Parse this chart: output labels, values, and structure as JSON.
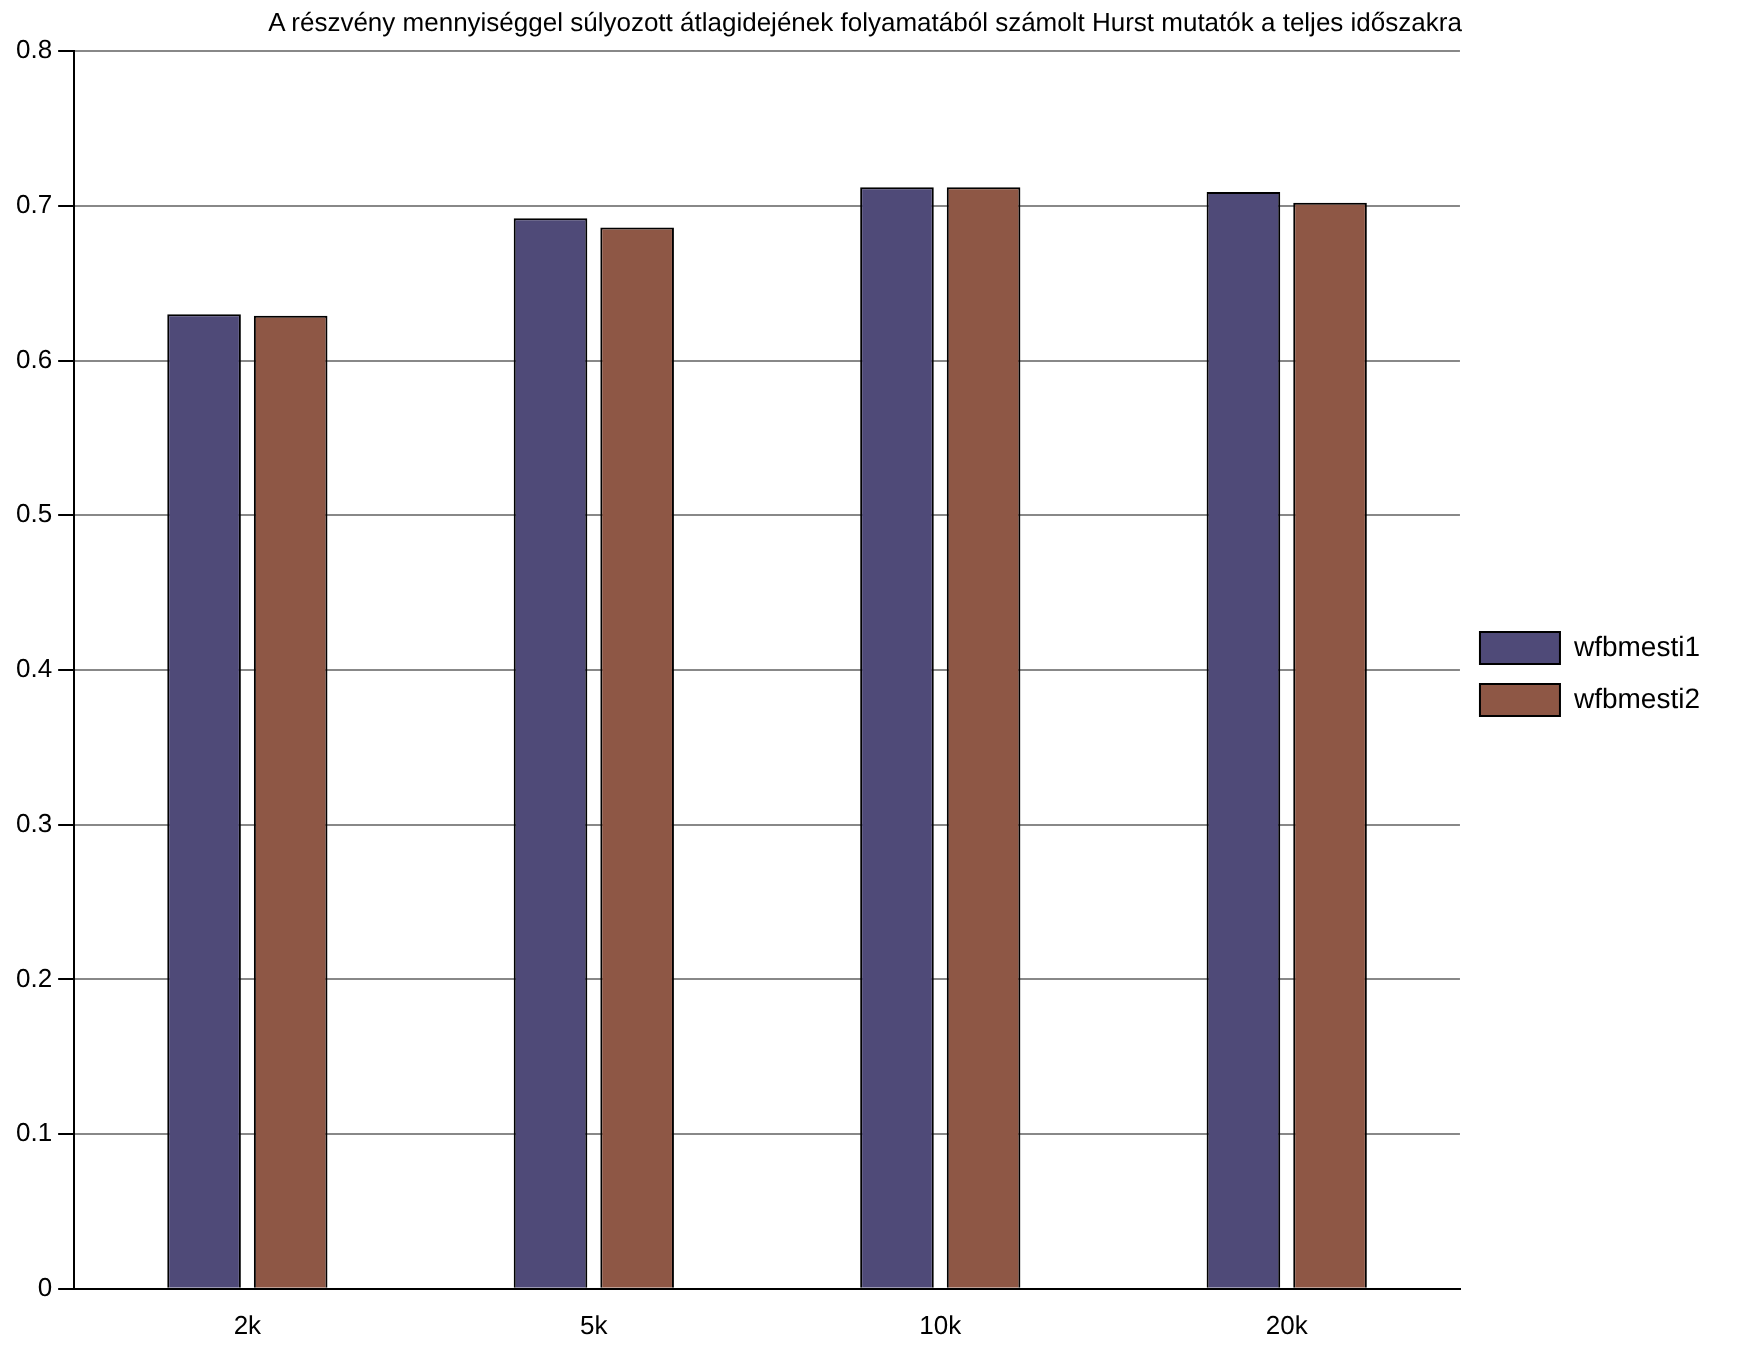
{
  "chart_data": {
    "type": "bar",
    "title": "A részvény mennyiséggel súlyozott átlagidejének folyamatából számolt Hurst mutatók a teljes időszakra",
    "categories": [
      "2k",
      "5k",
      "10k",
      "20k"
    ],
    "series": [
      {
        "name": "wfbmesti1",
        "color": "#4f4a78",
        "values": [
          0.63,
          0.692,
          0.712,
          0.709
        ]
      },
      {
        "name": "wfbmesti2",
        "color": "#8e5745",
        "values": [
          0.629,
          0.686,
          0.712,
          0.702
        ]
      }
    ],
    "ylim": [
      0,
      0.8
    ],
    "yticks": [
      0,
      0.1,
      0.2,
      0.3,
      0.4,
      0.5,
      0.6,
      0.7,
      0.8
    ],
    "grid": "y",
    "legend": "right"
  }
}
